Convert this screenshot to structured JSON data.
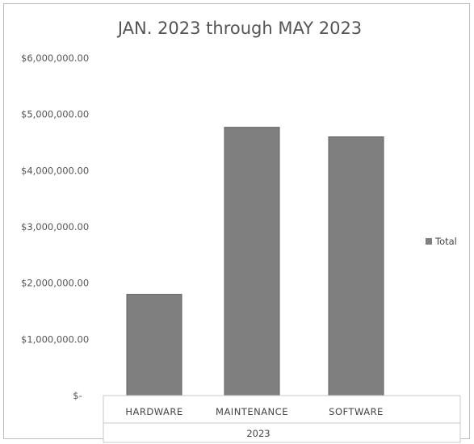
{
  "chart_data": {
    "type": "bar",
    "title": "JAN. 2023 through MAY 2023",
    "xlabel": "",
    "ylabel": "",
    "group_label": "2023",
    "categories": [
      "HARDWARE",
      "MAINTENANCE",
      "SOFTWARE"
    ],
    "series": [
      {
        "name": "Total",
        "values": [
          1800000,
          4770000,
          4600000
        ],
        "color": "#7f7f7f"
      }
    ],
    "ylim": [
      0,
      6000000
    ],
    "yticks": [
      0,
      1000000,
      2000000,
      3000000,
      4000000,
      5000000,
      6000000
    ],
    "ytick_labels": [
      "$-",
      "$1,000,000.00",
      "$2,000,000.00",
      "$3,000,000.00",
      "$4,000,000.00",
      "$5,000,000.00",
      "$6,000,000.00"
    ],
    "grid": false,
    "legend": "right"
  }
}
